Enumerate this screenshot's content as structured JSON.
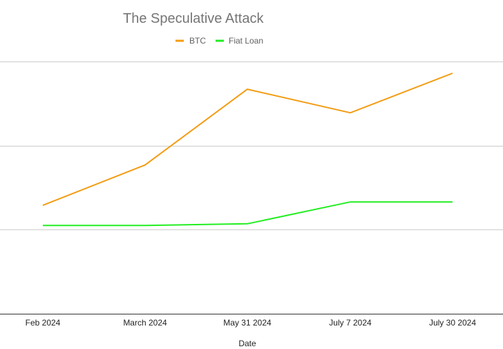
{
  "chart_data": {
    "type": "line",
    "title": "The Speculative Attack",
    "xlabel": "Date",
    "ylabel": "",
    "categories": [
      "Feb 2024",
      "March 2024",
      "May 31 2024",
      "July 7 2024",
      "July 30 2024"
    ],
    "ylim": [
      0,
      3
    ],
    "y_tick_labels_visible": false,
    "grid": true,
    "legend_position": "top",
    "series": [
      {
        "name": "BTC",
        "color": "#f39c12",
        "values": [
          1.29,
          1.77,
          2.67,
          2.39,
          2.86
        ]
      },
      {
        "name": "Fiat Loan",
        "color": "#22ee22",
        "values": [
          1.05,
          1.05,
          1.07,
          1.33,
          1.33
        ]
      }
    ]
  }
}
